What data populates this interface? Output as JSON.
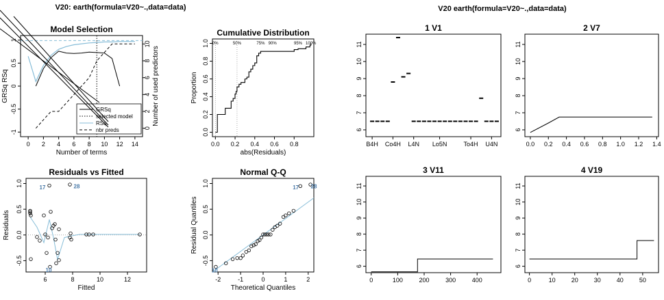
{
  "header": {
    "left_title": "V20: earth(formula=V20~.,data=data)",
    "right_title": "V20   earth(formula=V20~.,data=data)"
  },
  "colors": {
    "light_blue": "#87bdd8",
    "black": "#000000",
    "label_blue": "#4a7aa8"
  },
  "chart_data": [
    {
      "id": "model_selection",
      "type": "line",
      "title": "Model Selection",
      "xlabel": "Number of terms",
      "ylabel": "GRSq   RSq",
      "y2label": "Number of used predictors",
      "xlim": [
        -1,
        15
      ],
      "ylim": [
        -1.1,
        1.1
      ],
      "y2lim": [
        -1,
        11
      ],
      "xticks": [
        "0",
        "2",
        "4",
        "6",
        "8",
        "10",
        "12",
        "14"
      ],
      "yticks": [
        "-1",
        "-0.5",
        "0",
        "0.5",
        "1"
      ],
      "y2ticks": [
        "0",
        "2",
        "4",
        "6",
        "8",
        "10"
      ],
      "selected_model": 9,
      "legend_position": "bottom-right",
      "legend": [
        "GRSq",
        "selected model",
        "RSq",
        "nbr preds"
      ],
      "series": [
        {
          "name": "GRSq",
          "x": [
            1,
            2,
            3,
            4,
            5,
            6,
            7,
            8,
            9,
            10,
            11,
            12
          ],
          "y": [
            0.0,
            0.38,
            0.62,
            0.76,
            0.72,
            0.71,
            0.72,
            0.74,
            0.73,
            0.72,
            0.6,
            0.0
          ]
        },
        {
          "name": "RSq",
          "x": [
            0,
            1,
            2,
            3,
            4,
            5,
            6,
            7,
            8,
            9,
            10,
            11,
            12,
            13,
            14
          ],
          "y": [
            0.65,
            0.1,
            0.45,
            0.67,
            0.8,
            0.86,
            0.9,
            0.92,
            0.94,
            0.95,
            0.96,
            0.96,
            0.97,
            0.97,
            0.97
          ]
        },
        {
          "name": "nbr preds",
          "x": [
            1,
            2,
            3,
            4,
            5,
            6,
            7,
            8,
            9,
            10,
            11,
            12,
            13,
            14
          ],
          "y": [
            0,
            1,
            2,
            2,
            3,
            4,
            5,
            6,
            8,
            9,
            10,
            10,
            10,
            10
          ]
        }
      ]
    },
    {
      "id": "cumulative_distribution",
      "type": "line",
      "title": "Cumulative Distribution",
      "xlabel": "abs(Residuals)",
      "ylabel": "Proportion",
      "xlim": [
        -0.03,
        1.0
      ],
      "ylim": [
        -0.05,
        1.05
      ],
      "xticks": [
        "0.0",
        "0.2",
        "0.4",
        "0.6",
        "0.8"
      ],
      "yticks": [
        "0.0",
        "0.2",
        "0.4",
        "0.6",
        "0.8",
        "1.0"
      ],
      "top_labels": [
        "0%",
        "50%",
        "75%",
        "90%",
        "95%",
        "100%"
      ],
      "top_label_x": [
        0.0,
        0.22,
        0.46,
        0.58,
        0.84,
        0.97
      ],
      "x": [
        0.0,
        0.02,
        0.02,
        0.1,
        0.1,
        0.16,
        0.16,
        0.18,
        0.2,
        0.21,
        0.22,
        0.24,
        0.26,
        0.3,
        0.32,
        0.34,
        0.36,
        0.38,
        0.4,
        0.42,
        0.44,
        0.46,
        0.48,
        0.5,
        0.52,
        0.54,
        0.56,
        0.58,
        0.6,
        0.8,
        0.84,
        0.92,
        0.96,
        0.97
      ],
      "y": [
        0.0,
        0.04,
        0.2,
        0.22,
        0.27,
        0.29,
        0.35,
        0.38,
        0.43,
        0.46,
        0.51,
        0.54,
        0.56,
        0.6,
        0.62,
        0.68,
        0.71,
        0.75,
        0.78,
        0.86,
        0.89,
        0.91,
        0.91,
        0.91,
        0.91,
        0.91,
        0.91,
        0.91,
        0.91,
        0.93,
        0.94,
        0.96,
        0.98,
        1.0
      ]
    },
    {
      "id": "residuals_vs_fitted",
      "type": "scatter",
      "title": "Residuals vs Fitted",
      "xlabel": "Fitted",
      "ylabel": "Residuals",
      "xlim": [
        4.6,
        13.4
      ],
      "ylim": [
        -0.72,
        1.1
      ],
      "xticks": [
        "6",
        "8",
        "10",
        "12"
      ],
      "yticks": [
        "-0.5",
        "0.0",
        "0.5",
        "1.0"
      ],
      "points": [
        [
          4.9,
          0.42
        ],
        [
          4.9,
          0.47
        ],
        [
          4.9,
          0.45
        ],
        [
          4.95,
          -0.47
        ],
        [
          4.95,
          0.38
        ],
        [
          5.4,
          -0.04
        ],
        [
          5.6,
          -0.11
        ],
        [
          5.9,
          0.38
        ],
        [
          6.0,
          0.01
        ],
        [
          6.1,
          -0.35
        ],
        [
          6.2,
          -0.05
        ],
        [
          6.3,
          0.96
        ],
        [
          6.35,
          -0.62
        ],
        [
          6.4,
          0.45
        ],
        [
          6.5,
          0.13
        ],
        [
          6.6,
          0.18
        ],
        [
          6.7,
          0.21
        ],
        [
          6.75,
          -0.09
        ],
        [
          6.8,
          -0.55
        ],
        [
          6.9,
          -0.35
        ],
        [
          7.0,
          -0.49
        ],
        [
          7.0,
          0.11
        ],
        [
          7.8,
          -0.05
        ],
        [
          7.85,
          0.03
        ],
        [
          7.9,
          -0.09
        ],
        [
          7.8,
          0.98
        ],
        [
          9.0,
          0.01
        ],
        [
          9.2,
          0.01
        ],
        [
          9.5,
          0.01
        ],
        [
          12.9,
          0.01
        ]
      ],
      "smooth_x": [
        4.9,
        5.4,
        5.9,
        6.3,
        6.6,
        6.9,
        7.4,
        7.9,
        8.5,
        9.3,
        12.9
      ],
      "smooth_y": [
        0.35,
        0.15,
        -0.15,
        0.3,
        -0.05,
        -0.48,
        -0.05,
        -0.02,
        0.01,
        0.01,
        0.01
      ],
      "labels": [
        {
          "text": "17",
          "x": 5.8,
          "y": 0.93
        },
        {
          "text": "28",
          "x": 8.3,
          "y": 0.95
        },
        {
          "text": "10",
          "x": 6.25,
          "y": -0.68
        }
      ]
    },
    {
      "id": "normal_qq",
      "type": "scatter",
      "title": "Normal Q-Q",
      "xlabel": "Theoretical Quantiles",
      "ylabel": "Residual Quantiles",
      "xlim": [
        -2.25,
        2.25
      ],
      "ylim": [
        -0.72,
        1.1
      ],
      "xticks": [
        "-2",
        "-1",
        "0",
        "1",
        "2"
      ],
      "yticks": [
        "-0.5",
        "0.0",
        "0.5",
        "1.0"
      ],
      "points": [
        [
          -2.1,
          -0.62
        ],
        [
          -1.65,
          -0.55
        ],
        [
          -1.35,
          -0.47
        ],
        [
          -1.15,
          -0.45
        ],
        [
          -1.0,
          -0.45
        ],
        [
          -0.9,
          -0.4
        ],
        [
          -0.75,
          -0.33
        ],
        [
          -0.63,
          -0.3
        ],
        [
          -0.52,
          -0.22
        ],
        [
          -0.42,
          -0.2
        ],
        [
          -0.33,
          -0.18
        ],
        [
          -0.24,
          -0.12
        ],
        [
          -0.16,
          -0.1
        ],
        [
          -0.08,
          -0.05
        ],
        [
          0.0,
          0.01
        ],
        [
          0.08,
          0.01
        ],
        [
          0.16,
          0.01
        ],
        [
          0.24,
          0.01
        ],
        [
          0.33,
          0.01
        ],
        [
          0.42,
          0.1
        ],
        [
          0.52,
          0.15
        ],
        [
          0.63,
          0.18
        ],
        [
          0.75,
          0.22
        ],
        [
          0.9,
          0.35
        ],
        [
          1.0,
          0.38
        ],
        [
          1.15,
          0.42
        ],
        [
          1.35,
          0.47
        ],
        [
          1.65,
          0.95
        ],
        [
          2.1,
          0.98
        ]
      ],
      "ref_line": [
        [
          -2.25,
          -0.72
        ],
        [
          2.25,
          0.72
        ]
      ],
      "labels": [
        {
          "text": "17",
          "x": 1.45,
          "y": 0.93
        },
        {
          "text": "28",
          "x": 2.25,
          "y": 0.95
        },
        {
          "text": "10",
          "x": -2.15,
          "y": -0.69
        }
      ]
    },
    {
      "id": "v1",
      "type": "scatter",
      "title": "1  V1",
      "ylim": [
        5.6,
        11.6
      ],
      "yticks": [
        "6",
        "7",
        "8",
        "9",
        "10",
        "11"
      ],
      "xticks": [
        "B4H",
        "Co4H",
        "L4N",
        "Lo5N",
        "To4H",
        "U4N"
      ],
      "xtick_pos": [
        1,
        5,
        9,
        14,
        20,
        24
      ],
      "ncat": 26,
      "bars": [
        [
          1,
          6.5
        ],
        [
          2,
          6.5
        ],
        [
          3,
          6.5
        ],
        [
          4,
          6.5
        ],
        [
          5,
          8.8
        ],
        [
          6,
          11.4
        ],
        [
          7,
          9.1
        ],
        [
          8,
          9.3
        ],
        [
          9,
          6.5
        ],
        [
          10,
          6.5
        ],
        [
          11,
          6.5
        ],
        [
          12,
          6.5
        ],
        [
          13,
          6.5
        ],
        [
          14,
          6.5
        ],
        [
          15,
          6.5
        ],
        [
          16,
          6.5
        ],
        [
          17,
          6.5
        ],
        [
          18,
          6.5
        ],
        [
          19,
          6.5
        ],
        [
          20,
          6.5
        ],
        [
          21,
          6.5
        ],
        [
          22,
          7.85
        ],
        [
          23,
          6.5
        ],
        [
          24,
          6.5
        ],
        [
          25,
          6.5
        ]
      ]
    },
    {
      "id": "v7",
      "type": "line",
      "title": "2  V7",
      "xlim": [
        -0.06,
        1.42
      ],
      "ylim": [
        5.6,
        11.6
      ],
      "yticks": [
        "6",
        "7",
        "8",
        "9",
        "10",
        "11"
      ],
      "xticks": [
        "0.0",
        "0.2",
        "0.4",
        "0.6",
        "0.8",
        "1.0",
        "1.2",
        "1.4"
      ],
      "x": [
        0.0,
        0.2,
        0.32,
        1.35
      ],
      "y": [
        5.85,
        6.4,
        6.75,
        6.75
      ]
    },
    {
      "id": "v11",
      "type": "line",
      "title": "3  V11",
      "xlim": [
        -20,
        490
      ],
      "ylim": [
        5.6,
        11.6
      ],
      "yticks": [
        "6",
        "7",
        "8",
        "9",
        "10",
        "11"
      ],
      "xticks": [
        "0",
        "100",
        "200",
        "300",
        "400"
      ],
      "x": [
        0,
        175,
        175,
        460
      ],
      "y": [
        5.65,
        5.65,
        6.45,
        6.45
      ]
    },
    {
      "id": "v19",
      "type": "line",
      "title": "4  V19",
      "xlim": [
        -2,
        57
      ],
      "ylim": [
        5.6,
        11.6
      ],
      "yticks": [
        "6",
        "7",
        "8",
        "9",
        "10",
        "11"
      ],
      "xticks": [
        "0",
        "10",
        "20",
        "30",
        "40",
        "50"
      ],
      "x": [
        0,
        47.5,
        47.5,
        55
      ],
      "y": [
        6.45,
        6.45,
        7.6,
        7.6
      ]
    }
  ]
}
